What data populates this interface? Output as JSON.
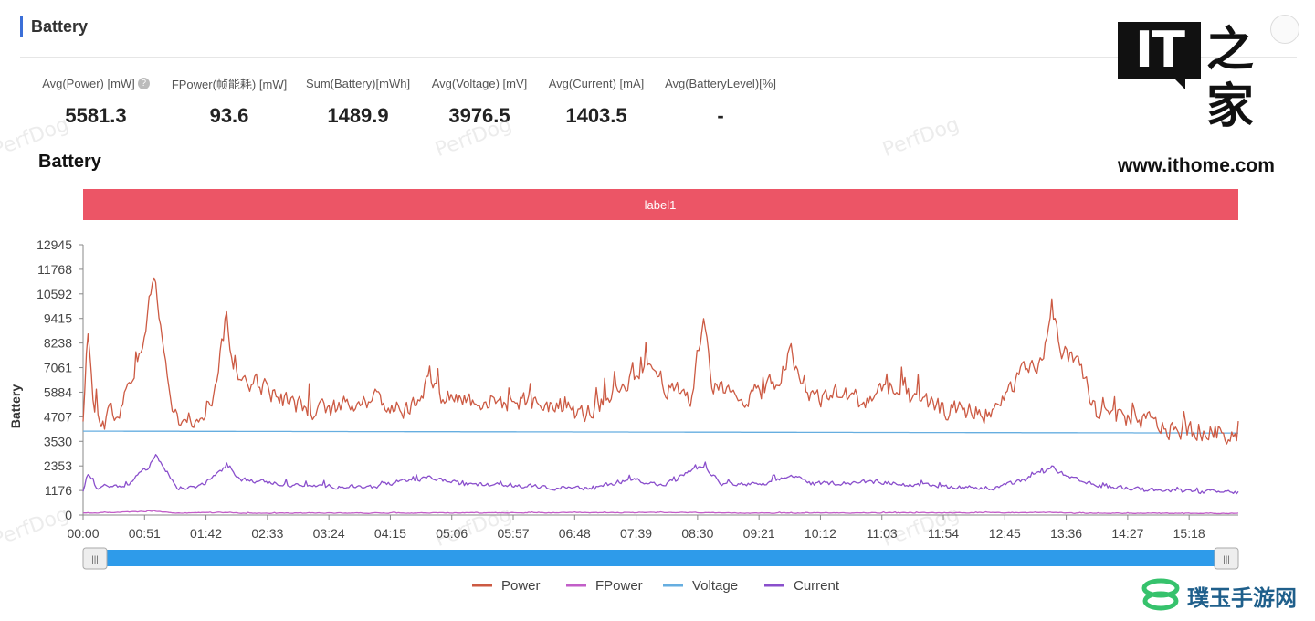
{
  "panel": {
    "title": "Battery"
  },
  "stats": [
    {
      "label": "Avg(Power) [mW]",
      "value": "5581.3",
      "help": true
    },
    {
      "label": "FPower(帧能耗) [mW]",
      "value": "93.6"
    },
    {
      "label": "Sum(Battery)[mWh]",
      "value": "1489.9"
    },
    {
      "label": "Avg(Voltage) [mV]",
      "value": "3976.5"
    },
    {
      "label": "Avg(Current) [mA]",
      "value": "1403.5"
    },
    {
      "label": "Avg(BatteryLevel)[%]",
      "value": "-"
    }
  ],
  "watermark_text": "PerfDog",
  "branding": {
    "it_text": "IT",
    "zh_text": "之家",
    "url": "www.ithome.com",
    "bottom_logo_text": "璞玉手游网"
  },
  "colors": {
    "power": "#cc5a43",
    "fpower": "#c25ec8",
    "voltage": "#66aee0",
    "current": "#8a4fcc",
    "label_band": "#ec5566",
    "slider": "#2e9bea",
    "accent": "#3b6fd8"
  },
  "chart_data": {
    "type": "line",
    "title": "Battery",
    "ylabel": "Battery",
    "xlabel": "",
    "band_label": "label1",
    "y_ticks": [
      0,
      1176,
      2353,
      3530,
      4707,
      5884,
      7061,
      8238,
      9415,
      10592,
      11768,
      12945
    ],
    "ylim": [
      0,
      12945
    ],
    "x_ticks": [
      "00:00",
      "00:51",
      "01:42",
      "02:33",
      "03:24",
      "04:15",
      "05:06",
      "05:57",
      "06:48",
      "07:39",
      "08:30",
      "09:21",
      "10:12",
      "11:03",
      "11:54",
      "12:45",
      "13:36",
      "14:27",
      "15:18"
    ],
    "x_range_seconds": [
      0,
      15960
    ],
    "legend": [
      "Power",
      "FPower",
      "Voltage",
      "Current"
    ],
    "legend_position": "bottom",
    "series": [
      {
        "name": "Power",
        "color": "#cc5a43",
        "baseline": 5200,
        "noise": 700,
        "keypoints": [
          [
            0,
            4700
          ],
          [
            60,
            8800
          ],
          [
            150,
            5000
          ],
          [
            300,
            4500
          ],
          [
            500,
            5200
          ],
          [
            700,
            6400
          ],
          [
            900,
            9800
          ],
          [
            990,
            11800
          ],
          [
            1080,
            9000
          ],
          [
            1200,
            5200
          ],
          [
            1400,
            4400
          ],
          [
            1650,
            5000
          ],
          [
            1800,
            5800
          ],
          [
            1980,
            9500
          ],
          [
            2100,
            6600
          ],
          [
            2400,
            6400
          ],
          [
            2700,
            5600
          ],
          [
            3000,
            5200
          ],
          [
            3300,
            5000
          ],
          [
            3600,
            5200
          ],
          [
            3900,
            5600
          ],
          [
            4200,
            5300
          ],
          [
            4500,
            5000
          ],
          [
            4800,
            6700
          ],
          [
            4950,
            5800
          ],
          [
            5400,
            5500
          ],
          [
            5800,
            5400
          ],
          [
            6200,
            5400
          ],
          [
            6600,
            5200
          ],
          [
            6900,
            4800
          ],
          [
            7200,
            5400
          ],
          [
            7500,
            6400
          ],
          [
            7800,
            7400
          ],
          [
            8100,
            6000
          ],
          [
            8400,
            5600
          ],
          [
            8580,
            9700
          ],
          [
            8700,
            6200
          ],
          [
            9000,
            5600
          ],
          [
            9300,
            5800
          ],
          [
            9600,
            6400
          ],
          [
            9780,
            7800
          ],
          [
            9900,
            6200
          ],
          [
            10200,
            5600
          ],
          [
            10500,
            5800
          ],
          [
            10800,
            5400
          ],
          [
            11100,
            6200
          ],
          [
            11400,
            5600
          ],
          [
            11700,
            5200
          ],
          [
            12000,
            5000
          ],
          [
            12300,
            5000
          ],
          [
            12600,
            4800
          ],
          [
            12900,
            6600
          ],
          [
            13200,
            7000
          ],
          [
            13400,
            9600
          ],
          [
            13500,
            8000
          ],
          [
            13700,
            7200
          ],
          [
            13800,
            6800
          ],
          [
            14000,
            4900
          ],
          [
            14300,
            4700
          ],
          [
            14700,
            4500
          ],
          [
            15000,
            4100
          ],
          [
            15500,
            4000
          ],
          [
            15960,
            3900
          ]
        ]
      },
      {
        "name": "FPower",
        "color": "#c25ec8",
        "baseline": 90,
        "noise": 25,
        "keypoints": [
          [
            0,
            90
          ],
          [
            1000,
            180
          ],
          [
            1300,
            90
          ],
          [
            2000,
            130
          ],
          [
            2200,
            90
          ],
          [
            8600,
            120
          ],
          [
            8800,
            90
          ],
          [
            13400,
            120
          ],
          [
            13700,
            90
          ],
          [
            15960,
            80
          ]
        ]
      },
      {
        "name": "Voltage",
        "color": "#66aee0",
        "baseline": 3976.5,
        "noise": 0,
        "keypoints": [
          [
            0,
            4020
          ],
          [
            15960,
            3930
          ]
        ]
      },
      {
        "name": "Current",
        "color": "#8a4fcc",
        "baseline": 1400,
        "noise": 150,
        "keypoints": [
          [
            0,
            1200
          ],
          [
            60,
            2000
          ],
          [
            200,
            1300
          ],
          [
            600,
            1400
          ],
          [
            900,
            2300
          ],
          [
            1000,
            2900
          ],
          [
            1100,
            2300
          ],
          [
            1300,
            1300
          ],
          [
            1600,
            1350
          ],
          [
            1980,
            2300
          ],
          [
            2200,
            1700
          ],
          [
            3000,
            1400
          ],
          [
            4000,
            1350
          ],
          [
            4800,
            1800
          ],
          [
            5200,
            1500
          ],
          [
            6000,
            1400
          ],
          [
            7000,
            1250
          ],
          [
            7600,
            1750
          ],
          [
            8000,
            1400
          ],
          [
            8580,
            2400
          ],
          [
            8800,
            1500
          ],
          [
            9400,
            1450
          ],
          [
            9800,
            1900
          ],
          [
            10100,
            1500
          ],
          [
            11000,
            1600
          ],
          [
            11500,
            1400
          ],
          [
            12600,
            1300
          ],
          [
            13000,
            1650
          ],
          [
            13400,
            2300
          ],
          [
            13600,
            1800
          ],
          [
            14000,
            1400
          ],
          [
            15000,
            1150
          ],
          [
            15960,
            1080
          ]
        ]
      }
    ]
  }
}
